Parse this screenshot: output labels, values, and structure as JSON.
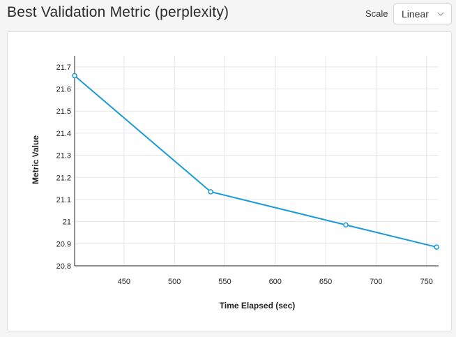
{
  "header": {
    "title": "Best Validation Metric (perplexity)",
    "scale_label": "Scale",
    "scale_value": "Linear",
    "scale_icon": "chevron-down-icon"
  },
  "chart_data": {
    "type": "line",
    "x": [
      401,
      536,
      670,
      760
    ],
    "y": [
      21.66,
      21.135,
      20.985,
      20.885
    ],
    "xlabel": "Time Elapsed (sec)",
    "ylabel": "Metric Value",
    "xlim": [
      401,
      762
    ],
    "ylim": [
      20.8,
      21.75
    ],
    "xticks": [
      450,
      500,
      550,
      600,
      650,
      700,
      750
    ],
    "xtick_labels": [
      "450",
      "500",
      "550",
      "600",
      "650",
      "700",
      "750"
    ],
    "yticks": [
      20.8,
      20.9,
      21,
      21.1,
      21.2,
      21.3,
      21.4,
      21.5,
      21.6,
      21.7
    ],
    "ytick_labels": [
      "20.8",
      "20.9",
      "21",
      "21.1",
      "21.2",
      "21.3",
      "21.4",
      "21.5",
      "21.6",
      "21.7"
    ],
    "grid": true,
    "line_color": "#1a9bd7",
    "grid_color": "#e6e6e6"
  }
}
